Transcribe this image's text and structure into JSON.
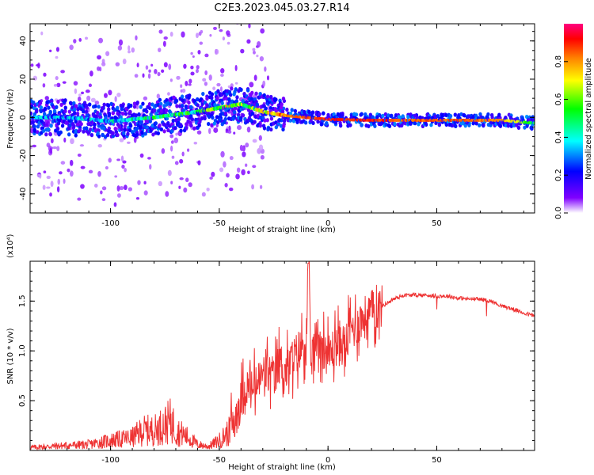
{
  "figure_title": "C2E3.2023.045.03.27.R14",
  "colorbar": {
    "label": "Normalized spectral amplitude",
    "ticks": [
      "0.0",
      "0.2",
      "0.4",
      "0.6",
      "0.8"
    ],
    "range": [
      0,
      1
    ],
    "colormap": [
      "#ffffff",
      "#8000ff",
      "#0000ff",
      "#00ffff",
      "#00ff00",
      "#ffff00",
      "#ff8000",
      "#ff0000",
      "#ff0080"
    ]
  },
  "chart_data": [
    {
      "type": "heatmap",
      "title": "",
      "xlabel": "Height of straight line (km)",
      "ylabel": "Frequency (Hz)",
      "xlim": [
        -137,
        95
      ],
      "ylim": [
        -50,
        49
      ],
      "xticks": [
        "-100",
        "-50",
        "0",
        "50"
      ],
      "yticks": [
        "-40",
        "-20",
        "0",
        "20",
        "40"
      ],
      "grid": false,
      "ridge": {
        "description": "frequency of peak amplitude vs height",
        "x": [
          -137,
          -120,
          -100,
          -80,
          -60,
          -50,
          -45,
          -40,
          -35,
          -30,
          -20,
          -10,
          0,
          20,
          40,
          60,
          80,
          95
        ],
        "y": [
          0,
          0,
          -2,
          0,
          3,
          5,
          6,
          7,
          5,
          3,
          1,
          0,
          -1,
          -1.5,
          -1.5,
          -1.5,
          -1.5,
          -3
        ],
        "peak_amplitude": [
          0.35,
          0.3,
          0.35,
          0.45,
          0.5,
          0.6,
          0.75,
          0.6,
          0.55,
          0.7,
          0.8,
          0.85,
          0.9,
          0.9,
          0.85,
          0.85,
          0.8,
          0.5
        ]
      }
    },
    {
      "type": "line",
      "title": "",
      "xlabel": "Height of straight line (km)",
      "ylabel": "SNR (10 * v/v)",
      "y_multiplier": "(x10⁴)",
      "xlim": [
        -137,
        95
      ],
      "ylim": [
        0,
        1.9
      ],
      "xticks": [
        "-100",
        "-50",
        "0",
        "50"
      ],
      "yticks": [
        "0.5",
        "1.0",
        "1.5"
      ],
      "grid": false,
      "color": "#ee3333",
      "series": [
        {
          "x": [
            -137,
            -120,
            -110,
            -100,
            -90,
            -85,
            -80,
            -75,
            -72,
            -70,
            -65,
            -60,
            -55,
            -50,
            -45,
            -40,
            -38,
            -35,
            -30,
            -28,
            -25,
            -22,
            -20,
            -18,
            -15,
            -12,
            -10,
            -9,
            -8,
            -5,
            -2,
            0,
            5,
            8,
            10,
            15,
            20,
            25,
            30,
            35,
            40,
            45,
            50,
            55,
            60,
            65,
            70,
            75,
            80,
            85,
            90,
            95
          ],
          "y": [
            0.03,
            0.05,
            0.06,
            0.1,
            0.13,
            0.2,
            0.2,
            0.26,
            0.3,
            0.2,
            0.14,
            0.06,
            0.04,
            0.1,
            0.2,
            0.5,
            0.65,
            0.6,
            0.75,
            0.8,
            0.72,
            0.9,
            0.78,
            0.85,
            0.95,
            1.05,
            1.1,
            1.88,
            0.9,
            1.15,
            1.05,
            0.95,
            1.1,
            1.05,
            1.2,
            1.3,
            1.4,
            1.45,
            1.52,
            1.56,
            1.56,
            1.56,
            1.55,
            1.55,
            1.53,
            1.52,
            1.52,
            1.5,
            1.45,
            1.42,
            1.38,
            1.35
          ]
        }
      ]
    }
  ]
}
